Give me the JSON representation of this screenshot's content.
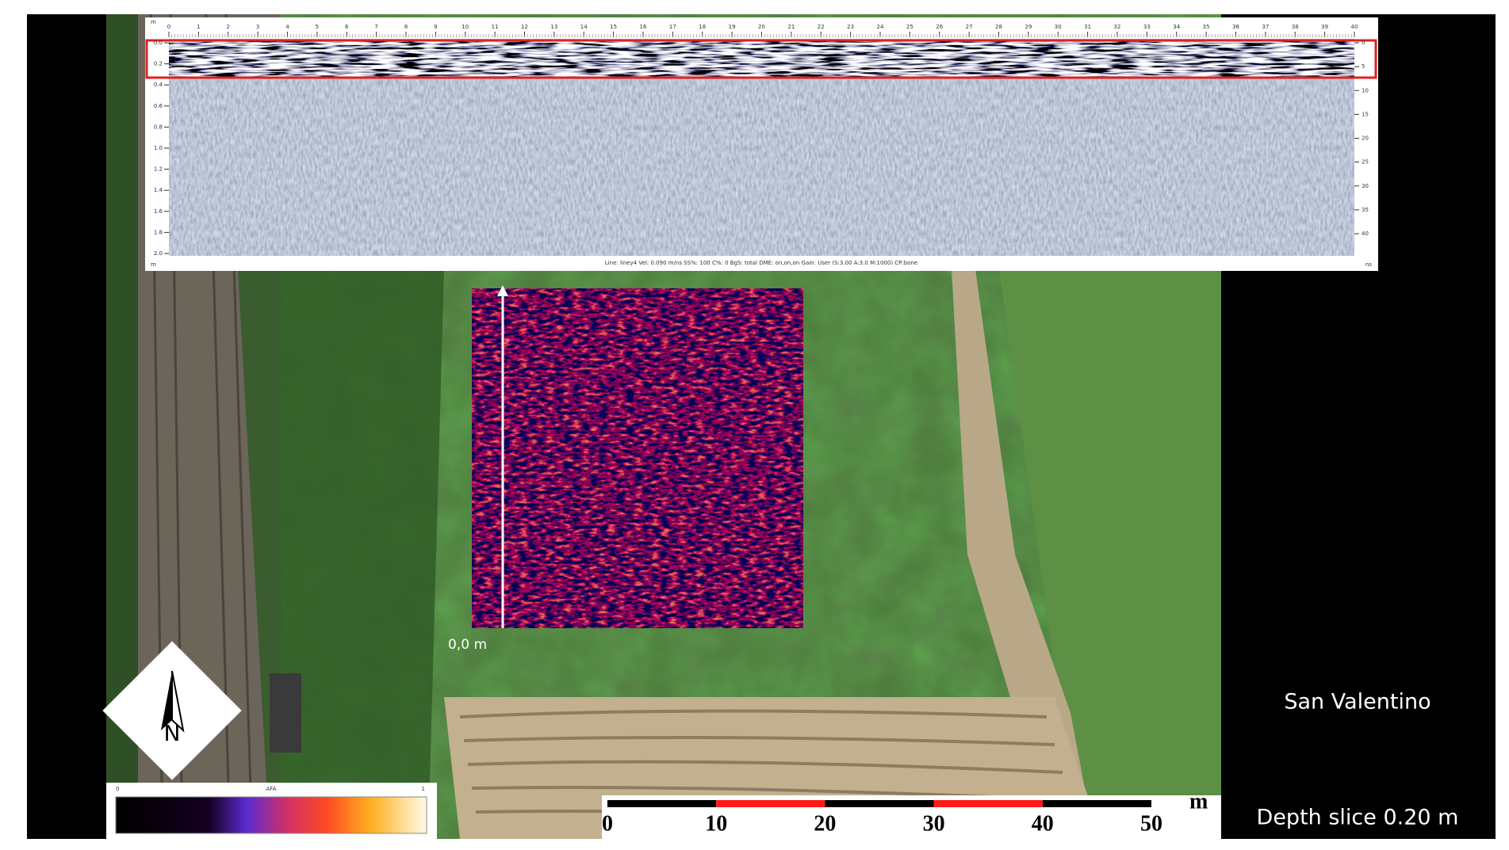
{
  "radargram": {
    "top_unit": "m",
    "x_ticks": [
      0,
      1,
      2,
      3,
      4,
      5,
      6,
      7,
      8,
      9,
      10,
      11,
      12,
      13,
      14,
      15,
      16,
      17,
      18,
      19,
      20,
      21,
      22,
      23,
      24,
      25,
      26,
      27,
      28,
      29,
      30,
      31,
      32,
      33,
      34,
      35,
      36,
      37,
      38,
      39,
      40
    ],
    "left_ticks": [
      "0.0",
      "0.2",
      "0.4",
      "0.6",
      "0.8",
      "1.0",
      "1.2",
      "1.4",
      "1.6",
      "1.8",
      "2.0"
    ],
    "left_unit": "m",
    "right_ticks": [
      0,
      5,
      10,
      15,
      20,
      25,
      30,
      35,
      40
    ],
    "right_unit": "ns",
    "info": "Line: liney4   Vel: 0.090 m/ns   SS%: 100   C%: 0   BgS: total   DME: on,on,on   Gain: User (S:3.00 A:3.0 M:1000)   CP:bone"
  },
  "slice": {
    "origin_label": "0,0 m"
  },
  "north_label": "N",
  "colorbar": {
    "min": "0",
    "label": "AFA",
    "max": "1"
  },
  "scale_bar": {
    "ticks": [
      0,
      10,
      20,
      30,
      40,
      50
    ],
    "unit": "m"
  },
  "site": "San Valentino",
  "depth": "Depth slice 0.20 m"
}
